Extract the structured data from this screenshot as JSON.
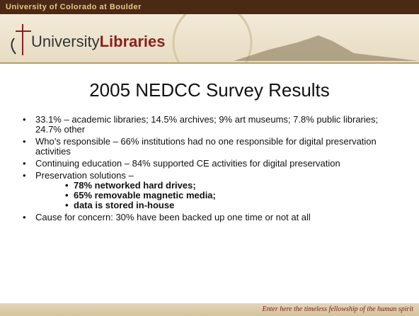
{
  "header": {
    "university": "University of Colorado at Boulder",
    "logo_prefix": "University",
    "logo_bold": "Libraries"
  },
  "title": "2005 NEDCC Survey Results",
  "bullets": [
    {
      "text": "33.1% – academic libraries; 14.5% archives; 9% art museums; 7.8% public libraries; 24.7% other"
    },
    {
      "text": "Who’s responsible – 66% institutions had no one responsible for digital preservation activities"
    },
    {
      "text": "Continuing education – 84% supported CE activities for digital preservation"
    },
    {
      "text": "Preservation solutions –",
      "subitems": [
        "78% networked hard drives;",
        "65% removable magnetic media;",
        "data is stored in-house"
      ]
    },
    {
      "text": "Cause for concern: 30% have been backed up one time or not at all"
    }
  ],
  "footer": {
    "tagline": "Enter here the timeless fellowship of the human spirit"
  }
}
